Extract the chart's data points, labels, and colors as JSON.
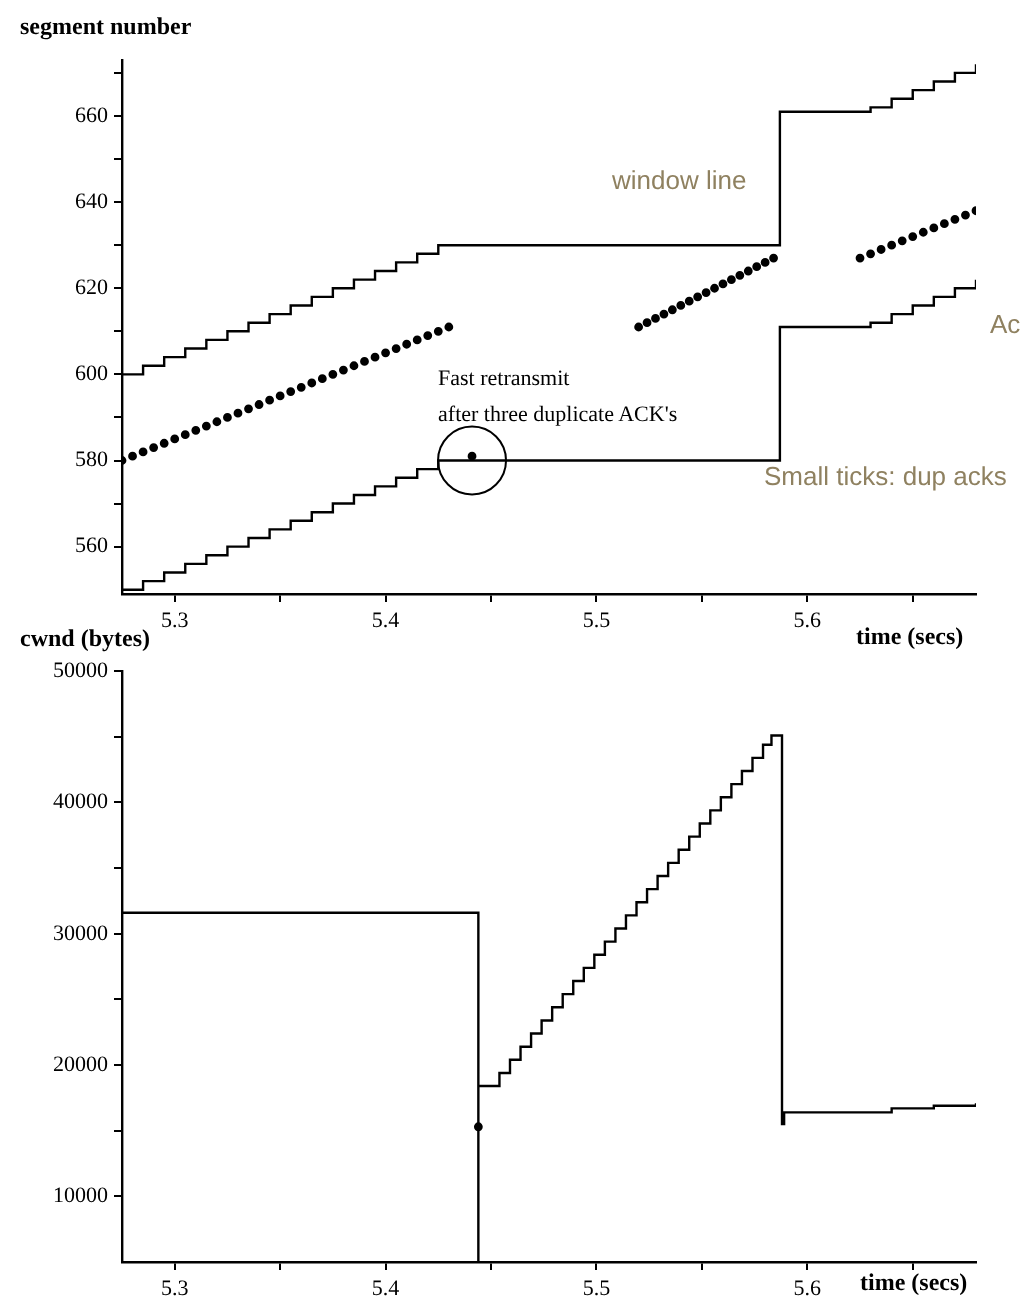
{
  "chart_data": [
    {
      "type": "step",
      "ylabel": "segment number",
      "xlabel": "time (secs)",
      "xlim": [
        5.275,
        5.68
      ],
      "ylim": [
        549,
        673
      ],
      "xticks": [
        5.3,
        {
          "value": 5.35,
          "label": null
        },
        5.4,
        {
          "value": 5.45,
          "label": null
        },
        5.5,
        {
          "value": 5.55,
          "label": null
        },
        5.6,
        {
          "value": 5.65,
          "label": null
        }
      ],
      "yticks": [
        560,
        {
          "value": 570,
          "label": null
        },
        580,
        {
          "value": 590,
          "label": null
        },
        600,
        {
          "value": 610,
          "label": null
        },
        620,
        {
          "value": 630,
          "label": null
        },
        640,
        {
          "value": 650,
          "label": null
        },
        660,
        {
          "value": 670,
          "label": null
        }
      ],
      "grid": false,
      "annotations": [
        {
          "text": "Fast retransmit\nafter three duplicate ACK's",
          "x": 5.441,
          "y": 580
        },
        "window line",
        "Small ticks: dup acks",
        "Ac"
      ],
      "series": [
        {
          "type": "step",
          "color": "#000000",
          "x": [
            5.275,
            5.285,
            5.295,
            5.305,
            5.315,
            5.325,
            5.335,
            5.345,
            5.355,
            5.365,
            5.375,
            5.385,
            5.395,
            5.405,
            5.415,
            5.425,
            5.587,
            5.63,
            5.64,
            5.65,
            5.66,
            5.67,
            5.68
          ],
          "values": [
            600,
            602,
            604,
            606,
            608,
            610,
            612,
            614,
            616,
            618,
            620,
            622,
            624,
            626,
            628,
            630,
            661,
            662,
            664,
            666,
            668,
            670,
            672
          ]
        },
        {
          "type": "scatter",
          "color": "#000000",
          "x": [
            5.275,
            5.28,
            5.285,
            5.29,
            5.295,
            5.3,
            5.305,
            5.31,
            5.315,
            5.32,
            5.325,
            5.33,
            5.335,
            5.34,
            5.345,
            5.35,
            5.355,
            5.36,
            5.365,
            5.37,
            5.375,
            5.38,
            5.385,
            5.39,
            5.395,
            5.4,
            5.405,
            5.41,
            5.415,
            5.42,
            5.425,
            5.43,
            5.441,
            5.52,
            5.524,
            5.528,
            5.532,
            5.536,
            5.54,
            5.544,
            5.548,
            5.552,
            5.556,
            5.56,
            5.564,
            5.568,
            5.572,
            5.576,
            5.58,
            5.584,
            5.625,
            5.63,
            5.635,
            5.64,
            5.645,
            5.65,
            5.655,
            5.66,
            5.665,
            5.67,
            5.675,
            5.68
          ],
          "values": [
            580,
            581,
            582,
            583,
            584,
            585,
            586,
            587,
            588,
            589,
            590,
            591,
            592,
            593,
            594,
            595,
            596,
            597,
            598,
            599,
            600,
            601,
            602,
            603,
            604,
            605,
            606,
            607,
            608,
            609,
            610,
            611,
            581,
            611,
            612,
            613,
            614,
            615,
            616,
            617,
            618,
            619,
            620,
            621,
            622,
            623,
            624,
            625,
            626,
            627,
            627,
            628,
            629,
            630,
            631,
            632,
            633,
            634,
            635,
            636,
            637,
            638
          ]
        },
        {
          "type": "step",
          "color": "#000000",
          "x": [
            5.275,
            5.285,
            5.295,
            5.305,
            5.315,
            5.325,
            5.335,
            5.345,
            5.355,
            5.365,
            5.375,
            5.385,
            5.395,
            5.405,
            5.415,
            5.425,
            5.587,
            5.63,
            5.64,
            5.65,
            5.66,
            5.67,
            5.68
          ],
          "values": [
            550,
            552,
            554,
            556,
            558,
            560,
            562,
            564,
            566,
            568,
            570,
            572,
            574,
            576,
            578,
            580,
            611,
            612,
            614,
            616,
            618,
            620,
            622
          ]
        }
      ]
    },
    {
      "type": "step",
      "ylabel": "cwnd (bytes)",
      "xlabel": "time (secs)",
      "xlim": [
        5.275,
        5.68
      ],
      "ylim": [
        5000,
        50000
      ],
      "xticks": [
        5.3,
        {
          "value": 5.35,
          "label": null
        },
        5.4,
        {
          "value": 5.45,
          "label": null
        },
        5.5,
        {
          "value": 5.55,
          "label": null
        },
        5.6,
        {
          "value": 5.65,
          "label": null
        }
      ],
      "yticks": [
        10000,
        {
          "value": 15000,
          "label": null
        },
        20000,
        {
          "value": 25000,
          "label": null
        },
        30000,
        {
          "value": 35000,
          "label": null
        },
        40000,
        {
          "value": 45000,
          "label": null
        },
        50000
      ],
      "grid": false,
      "series": [
        {
          "type": "step",
          "color": "#000000",
          "x": [
            5.275,
            5.444,
            5.444,
            5.454,
            5.459,
            5.464,
            5.469,
            5.474,
            5.479,
            5.484,
            5.489,
            5.494,
            5.499,
            5.504,
            5.509,
            5.514,
            5.519,
            5.524,
            5.529,
            5.534,
            5.539,
            5.544,
            5.549,
            5.554,
            5.559,
            5.564,
            5.569,
            5.574,
            5.579,
            5.583,
            5.588,
            5.589,
            5.64,
            5.66,
            5.68
          ],
          "values": [
            31600,
            5000,
            18400,
            19400,
            20400,
            21400,
            22400,
            23400,
            24400,
            25400,
            26400,
            27400,
            28400,
            29400,
            30400,
            31400,
            32400,
            33400,
            34400,
            35400,
            36400,
            37400,
            38400,
            39400,
            40400,
            41400,
            42400,
            43400,
            44400,
            45100,
            15500,
            16400,
            16700,
            16900,
            17100
          ]
        },
        {
          "type": "scatter",
          "color": "#000000",
          "x": [
            5.444
          ],
          "values": [
            15300
          ]
        }
      ]
    }
  ]
}
